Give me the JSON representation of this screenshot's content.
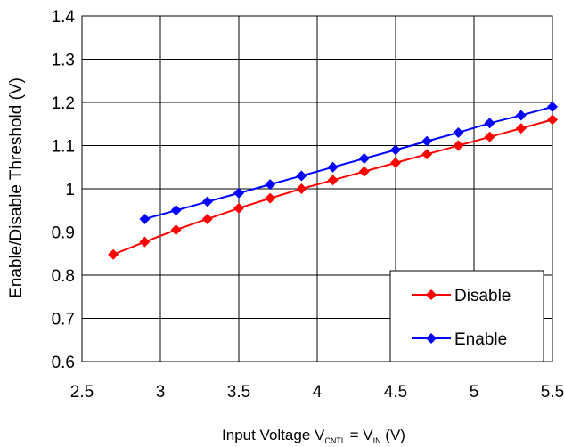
{
  "chart_data": {
    "type": "line",
    "ylabel": "Enable/Disable Threshold  (V)",
    "xlabel": {
      "prefix": "Input Voltage V",
      "sub1": "CNTL",
      "middle": " = V",
      "sub2": "IN",
      "suffix": " (V)"
    },
    "xlim": [
      2.5,
      5.5
    ],
    "ylim": [
      0.6,
      1.4
    ],
    "xticks": [
      "2.5",
      "3",
      "3.5",
      "4",
      "4.5",
      "5",
      "5.5"
    ],
    "yticks": [
      "0.6",
      "0.7",
      "0.8",
      "0.9",
      "1",
      "1.1",
      "1.2",
      "1.3",
      "1.4"
    ],
    "grid": true,
    "legend_position": "bottom-right",
    "series": [
      {
        "name": "Disable",
        "color": "#ff0000",
        "marker": "diamond",
        "x": [
          2.7,
          2.9,
          3.1,
          3.3,
          3.5,
          3.7,
          3.9,
          4.1,
          4.3,
          4.5,
          4.7,
          4.9,
          5.1,
          5.3,
          5.5
        ],
        "y": [
          0.848,
          0.877,
          0.905,
          0.93,
          0.955,
          0.978,
          1.0,
          1.02,
          1.04,
          1.06,
          1.08,
          1.1,
          1.12,
          1.14,
          1.16
        ]
      },
      {
        "name": "Enable",
        "color": "#0000ff",
        "marker": "diamond",
        "x": [
          2.9,
          3.1,
          3.3,
          3.5,
          3.7,
          3.9,
          4.1,
          4.3,
          4.5,
          4.7,
          4.9,
          5.1,
          5.3,
          5.5
        ],
        "y": [
          0.93,
          0.95,
          0.97,
          0.99,
          1.01,
          1.03,
          1.05,
          1.07,
          1.09,
          1.11,
          1.13,
          1.152,
          1.17,
          1.19
        ]
      }
    ]
  }
}
